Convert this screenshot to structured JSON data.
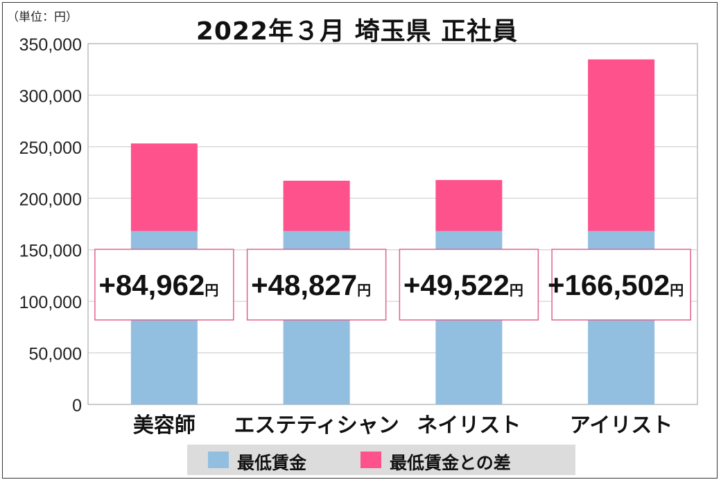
{
  "unit_label": "（単位：円）",
  "title": "2022年３月 埼玉県 正社員",
  "colors": {
    "min_wage": "#92bee0",
    "difference": "#fe528c",
    "label_border": "#e06090",
    "grid": "#c8c8c8",
    "plot_border": "#9a9a9a",
    "legend_bg": "#dcdcdc"
  },
  "legend": {
    "min_wage_label": "最低賃金",
    "difference_label": "最低賃金との差"
  },
  "chart_data": {
    "type": "bar",
    "stacked": true,
    "categories": [
      "美容師",
      "エステティシャン",
      "ネイリスト",
      "アイリスト"
    ],
    "series": [
      {
        "name": "最低賃金",
        "values": [
          168200,
          168200,
          168200,
          168200
        ]
      },
      {
        "name": "最低賃金との差",
        "values": [
          84962,
          48827,
          49522,
          166502
        ]
      }
    ],
    "diff_labels": [
      "+84,962",
      "+48,827",
      "+49,522",
      "+166,502"
    ],
    "diff_unit": "円",
    "ylim": [
      0,
      350000
    ],
    "yticks": [
      0,
      50000,
      100000,
      150000,
      200000,
      250000,
      300000,
      350000
    ],
    "ytick_labels": [
      "0",
      "50,000",
      "100,000",
      "150,000",
      "200,000",
      "250,000",
      "300,000",
      "350,000"
    ],
    "grid": true,
    "legend_position": "bottom"
  }
}
